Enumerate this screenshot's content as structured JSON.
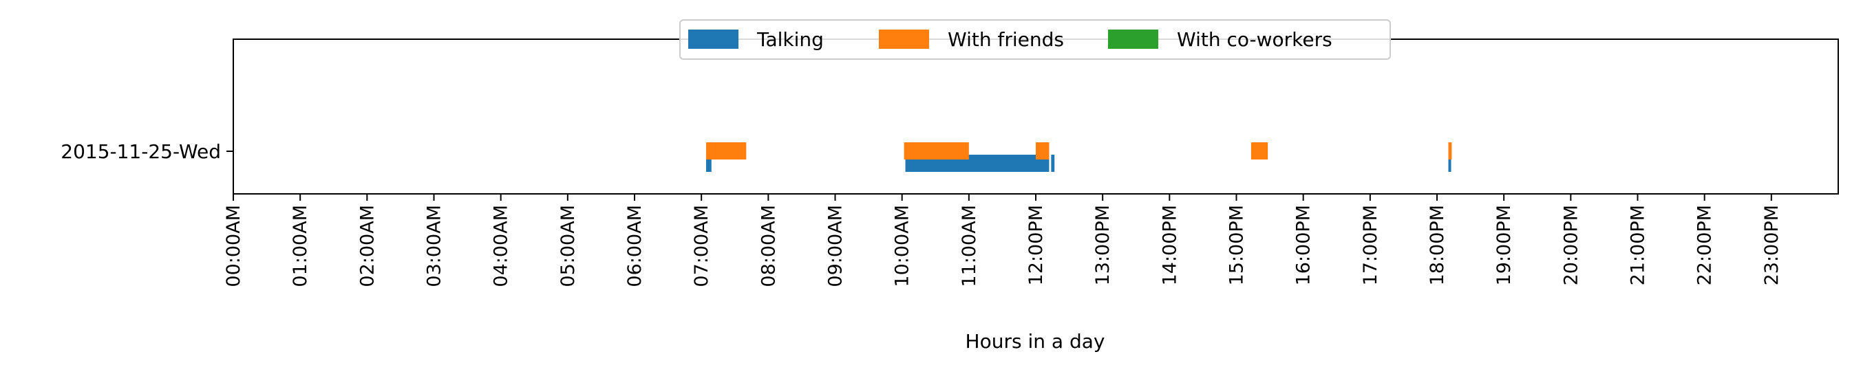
{
  "chart_data": {
    "type": "bar",
    "orientation": "horizontal-timeline",
    "xlabel": "Hours in a day",
    "ylabel": "",
    "xlim": [
      0,
      24
    ],
    "x_tick_labels": [
      "00:00AM",
      "01:00AM",
      "02:00AM",
      "03:00AM",
      "04:00AM",
      "05:00AM",
      "06:00AM",
      "07:00AM",
      "08:00AM",
      "09:00AM",
      "10:00AM",
      "11:00AM",
      "12:00PM",
      "13:00PM",
      "14:00PM",
      "15:00PM",
      "16:00PM",
      "17:00PM",
      "18:00PM",
      "19:00PM",
      "20:00PM",
      "21:00PM",
      "22:00PM",
      "23:00PM"
    ],
    "categories": [
      "2015-11-25-Wed"
    ],
    "grid": false,
    "legend": {
      "placement": "top-center",
      "entries": [
        {
          "label": "Talking",
          "color": "#1f77b4"
        },
        {
          "label": "With friends",
          "color": "#ff7f0e"
        },
        {
          "label": "With co-workers",
          "color": "#2ca02c"
        }
      ]
    },
    "series": [
      {
        "name": "Talking",
        "color": "#1f77b4",
        "intervals": [
          {
            "start": 7.07,
            "end": 7.15
          },
          {
            "start": 10.05,
            "end": 12.2
          },
          {
            "start": 12.23,
            "end": 12.28
          },
          {
            "start": 18.17,
            "end": 18.21
          }
        ]
      },
      {
        "name": "With friends",
        "color": "#ff7f0e",
        "intervals": [
          {
            "start": 7.07,
            "end": 7.67
          },
          {
            "start": 10.03,
            "end": 11.0
          },
          {
            "start": 12.0,
            "end": 12.2
          },
          {
            "start": 15.22,
            "end": 15.47
          },
          {
            "start": 18.17,
            "end": 18.22
          }
        ]
      },
      {
        "name": "With co-workers",
        "color": "#2ca02c",
        "intervals": []
      }
    ]
  }
}
